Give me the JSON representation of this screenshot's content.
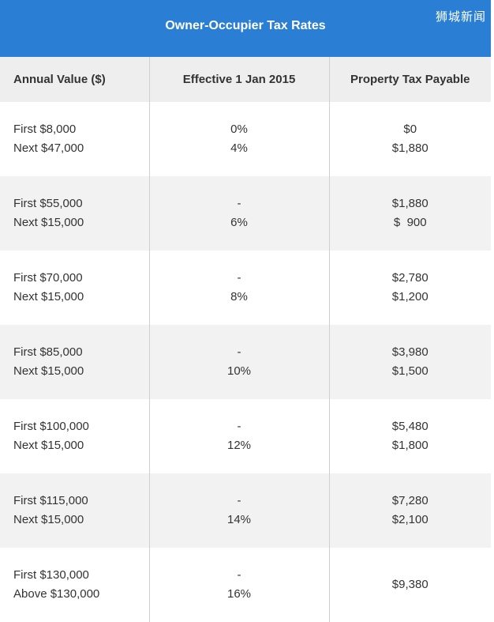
{
  "header": {
    "title": "Owner-Occupier Tax Rates",
    "watermark": "狮城新闻"
  },
  "table": {
    "columns": [
      "Annual Value ($)",
      "Effective 1 Jan 2015",
      "Property Tax Payable"
    ],
    "rows": [
      {
        "value": [
          "First $8,000",
          "Next $47,000"
        ],
        "rate": [
          "0%",
          "4%"
        ],
        "payable": [
          "$0",
          "$1,880"
        ]
      },
      {
        "value": [
          "First $55,000",
          "Next $15,000"
        ],
        "rate": [
          "-",
          "6%"
        ],
        "payable": [
          "$1,880",
          "$  900"
        ]
      },
      {
        "value": [
          "First $70,000",
          "Next $15,000"
        ],
        "rate": [
          "-",
          "8%"
        ],
        "payable": [
          "$2,780",
          "$1,200"
        ]
      },
      {
        "value": [
          "First $85,000",
          "Next $15,000"
        ],
        "rate": [
          "-",
          "10%"
        ],
        "payable": [
          "$3,980",
          "$1,500"
        ]
      },
      {
        "value": [
          "First $100,000",
          "Next $15,000"
        ],
        "rate": [
          "-",
          "12%"
        ],
        "payable": [
          "$5,480",
          "$1,800"
        ]
      },
      {
        "value": [
          "First $115,000",
          "Next $15,000"
        ],
        "rate": [
          "-",
          "14%"
        ],
        "payable": [
          "$7,280",
          "$2,100"
        ]
      },
      {
        "value": [
          "First $130,000",
          "Above $130,000"
        ],
        "rate": [
          "-",
          "16%"
        ],
        "payable": [
          "$9,380",
          ""
        ]
      }
    ]
  }
}
